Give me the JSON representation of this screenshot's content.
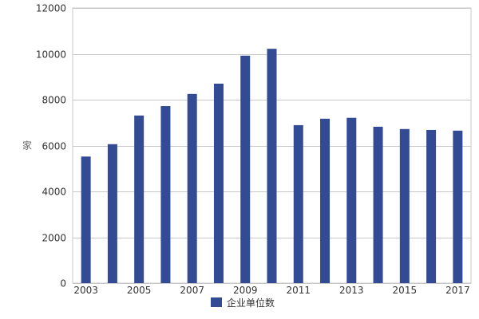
{
  "chart_data": {
    "type": "bar",
    "title": "",
    "xlabel": "",
    "ylabel": "家",
    "categories": [
      "2003",
      "2004",
      "2005",
      "2006",
      "2007",
      "2008",
      "2009",
      "2010",
      "2011",
      "2012",
      "2013",
      "2014",
      "2015",
      "2016",
      "2017"
    ],
    "x_tick_labels": [
      "2003",
      "2005",
      "2007",
      "2009",
      "2011",
      "2013",
      "2015",
      "2017"
    ],
    "y_ticks": [
      0,
      2000,
      4000,
      6000,
      8000,
      10000,
      12000
    ],
    "ylim": [
      0,
      12000
    ],
    "grid": true,
    "legend_position": "bottom",
    "series": [
      {
        "name": "企业单位数",
        "color": "#334a94",
        "values": [
          5520,
          6060,
          7310,
          7720,
          8250,
          8700,
          9920,
          10220,
          6890,
          7170,
          7210,
          6820,
          6720,
          6680,
          6650
        ]
      }
    ]
  }
}
